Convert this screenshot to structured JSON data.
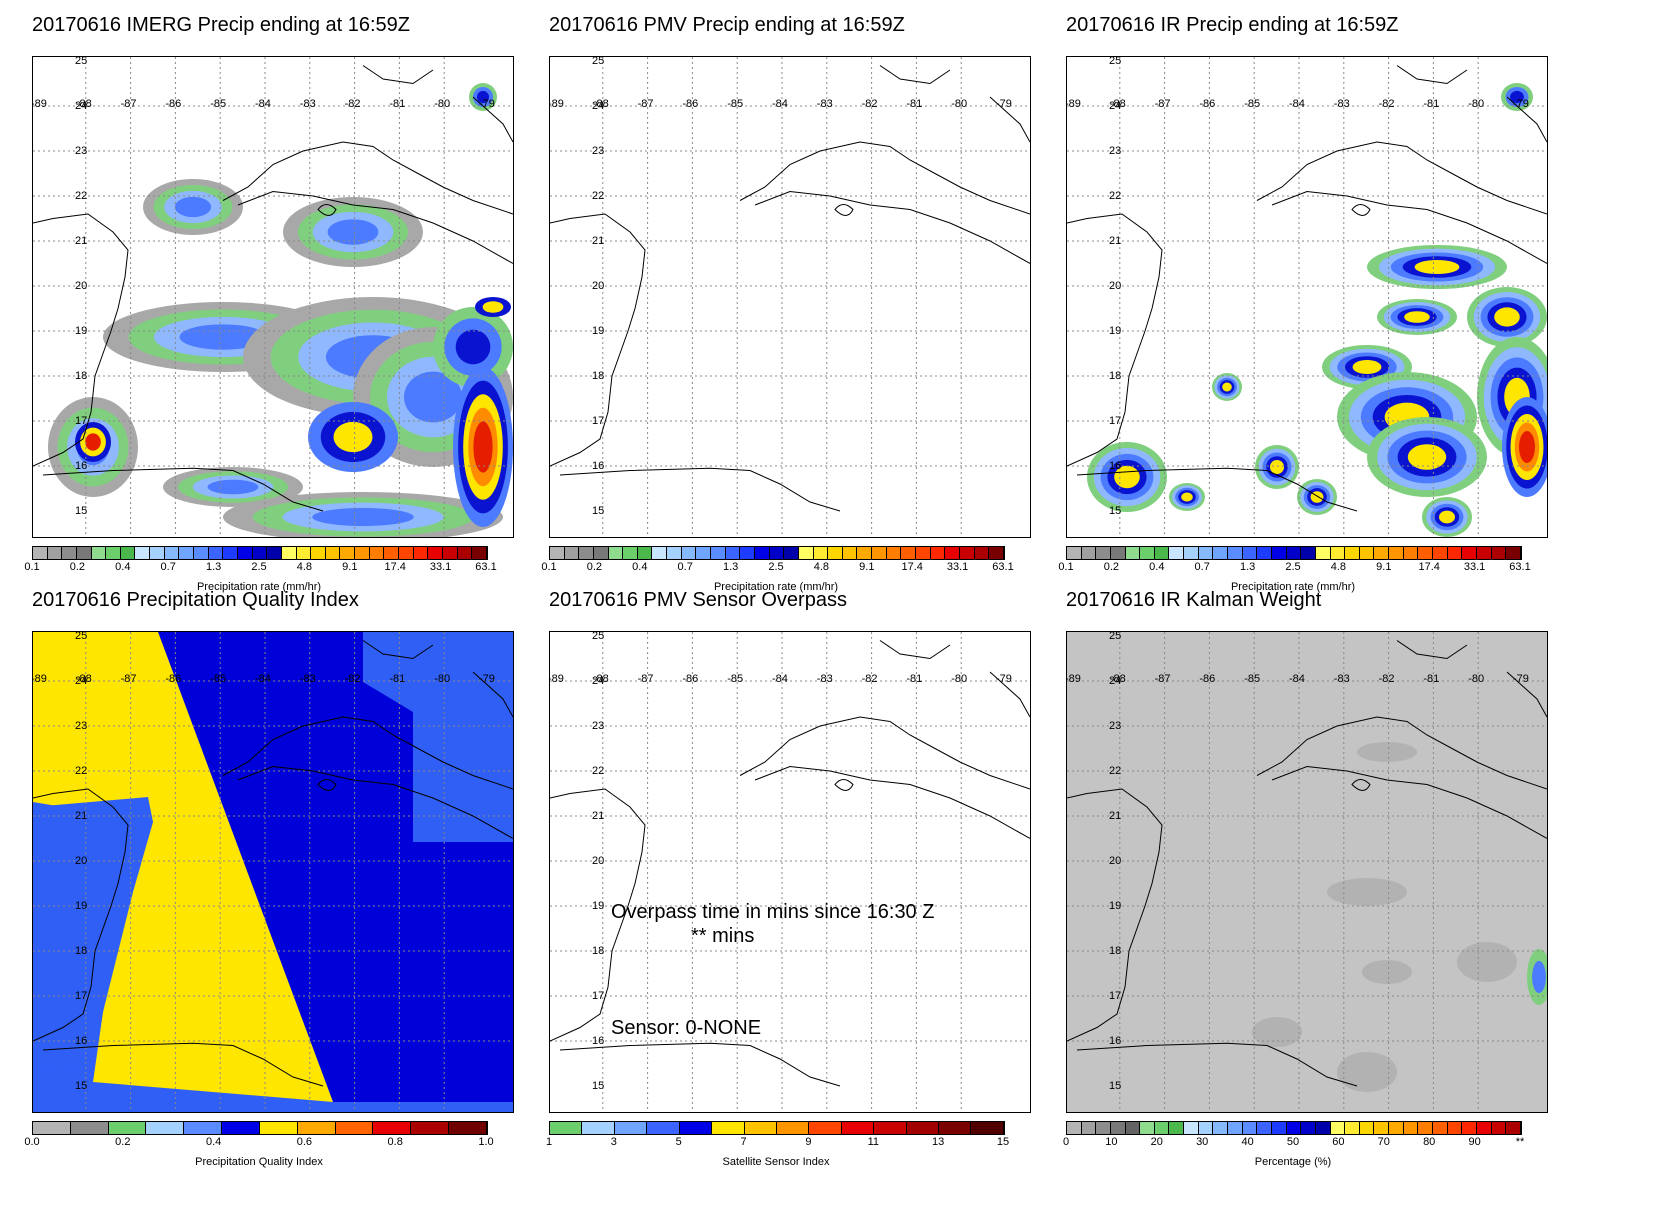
{
  "lat_labels": [
    "25",
    "24",
    "23",
    "22",
    "21",
    "20",
    "19",
    "18",
    "17",
    "16",
    "15"
  ],
  "lon_labels": [
    "-89",
    "-88",
    "-87",
    "-86",
    "-85",
    "-84",
    "-83",
    "-82",
    "-81",
    "-80",
    "-79"
  ],
  "precip_scale": {
    "ticks": [
      "0.1",
      "0.2",
      "0.4",
      "0.7",
      "1.3",
      "2.5",
      "4.8",
      "9.1",
      "17.4",
      "33.1",
      "63.1"
    ],
    "unit": "Precipitation rate (mm/hr)",
    "colors": [
      "#b4b4b4",
      "#a0a0a0",
      "#8c8c8c",
      "#787878",
      "#8fdc8f",
      "#6ccf6c",
      "#4bb84b",
      "#c8e6ff",
      "#a6d2ff",
      "#87b9ff",
      "#6fa4ff",
      "#5a8cff",
      "#3c64ff",
      "#1e3cff",
      "#0000e6",
      "#0000c8",
      "#0000aa",
      "#ffff64",
      "#ffeb32",
      "#ffd700",
      "#ffc300",
      "#ffaa00",
      "#ff9600",
      "#ff7d00",
      "#ff5f00",
      "#ff4600",
      "#ff2800",
      "#e60000",
      "#c80000",
      "#aa0000",
      "#780000"
    ]
  },
  "qi_scale": {
    "ticks": [
      "0.0",
      "0.2",
      "0.4",
      "0.6",
      "0.8",
      "1.0"
    ],
    "unit": "Precipitation Quality Index",
    "colors": [
      "#b4b4b4",
      "#8c8c8c",
      "#6ccf6c",
      "#a6d2ff",
      "#5a8cff",
      "#0000e6",
      "#ffe600",
      "#ffaa00",
      "#ff6400",
      "#e60000",
      "#aa0000",
      "#6e0000"
    ]
  },
  "sensor_scale": {
    "ticks": [
      "1",
      "3",
      "5",
      "7",
      "9",
      "11",
      "13",
      "15"
    ],
    "unit": "Satellite Sensor Index",
    "colors": [
      "#6ccf6c",
      "#a6d2ff",
      "#6fa4ff",
      "#3c64ff",
      "#0000e6",
      "#ffe600",
      "#ffc300",
      "#ff9600",
      "#ff4600",
      "#e60000",
      "#c80000",
      "#a00000",
      "#780000",
      "#500000"
    ]
  },
  "pct_scale": {
    "ticks": [
      "0",
      "10",
      "20",
      "30",
      "40",
      "50",
      "60",
      "70",
      "80",
      "90",
      "**"
    ],
    "unit": "Percentage (%)",
    "colors": [
      "#b4b4b4",
      "#a0a0a0",
      "#8c8c8c",
      "#787878",
      "#646464",
      "#8fdc8f",
      "#6ccf6c",
      "#4bb84b",
      "#c8e6ff",
      "#a6d2ff",
      "#87b9ff",
      "#6fa4ff",
      "#5a8cff",
      "#3c64ff",
      "#1e3cff",
      "#0000e6",
      "#0000c8",
      "#0000aa",
      "#ffff64",
      "#ffeb32",
      "#ffd700",
      "#ffc300",
      "#ffaa00",
      "#ff9600",
      "#ff7d00",
      "#ff5f00",
      "#ff4600",
      "#ff2800",
      "#e60000",
      "#c80000",
      "#aa0000"
    ]
  },
  "panels": [
    {
      "id": "imerg",
      "title": "20170616 IMERG Precip ending at 16:59Z",
      "scale": "precip_scale"
    },
    {
      "id": "pmv",
      "title": "20170616 PMV Precip ending at 16:59Z",
      "scale": "precip_scale"
    },
    {
      "id": "ir",
      "title": "20170616 IR Precip ending at 16:59Z",
      "scale": "precip_scale"
    },
    {
      "id": "qi",
      "title": "20170616 Precipitation Quality Index",
      "scale": "qi_scale"
    },
    {
      "id": "sensor",
      "title": "20170616 PMV Sensor Overpass",
      "scale": "sensor_scale"
    },
    {
      "id": "kalman",
      "title": "20170616 IR Kalman Weight",
      "scale": "pct_scale"
    }
  ],
  "overpass": {
    "line1": "Overpass time in mins since 16:30 Z",
    "line2": "** mins",
    "sensor": "Sensor:   0-NONE"
  }
}
